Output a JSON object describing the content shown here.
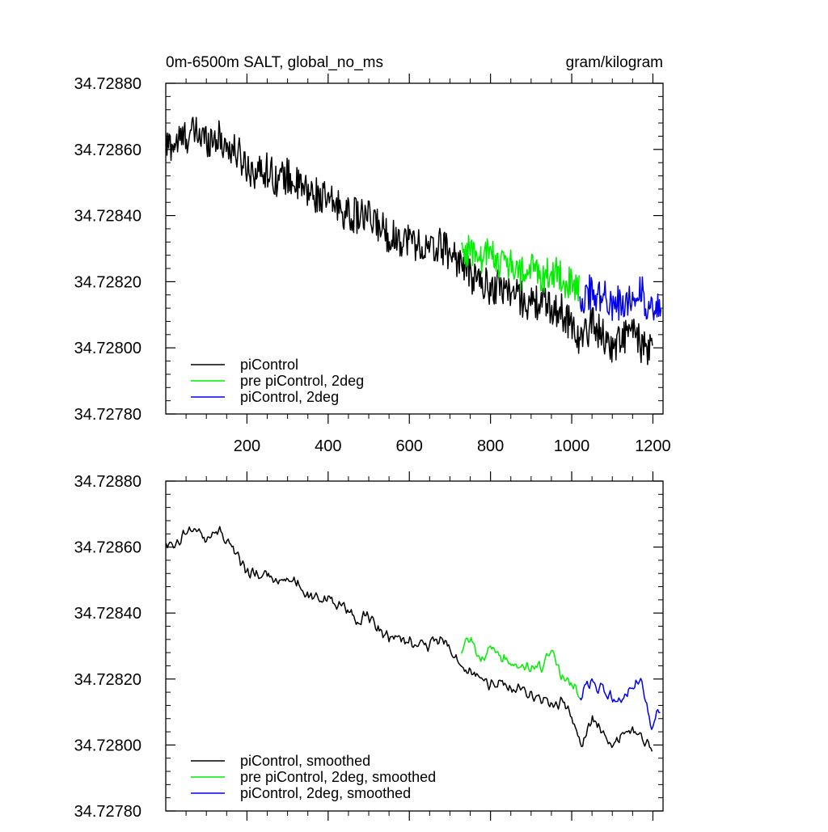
{
  "chart_data": [
    {
      "type": "line",
      "title": "0m-6500m SALT, global_no_ms",
      "units": "gram/kilogram",
      "xlim": [
        0,
        1225
      ],
      "ylim": [
        34.7278,
        34.7288
      ],
      "xticks": [
        200,
        400,
        600,
        800,
        1000,
        1200
      ],
      "xtick_labels": [
        "200",
        "400",
        "600",
        "800",
        "1000",
        "1200"
      ],
      "yticks": [
        34.7278,
        34.728,
        34.7282,
        34.7284,
        34.7286,
        34.7288
      ],
      "ytick_labels": [
        "34.72780",
        "34.72800",
        "34.72820",
        "34.72840",
        "34.72860",
        "34.72880"
      ],
      "grid": false,
      "legend": "bottom-left",
      "series": [
        {
          "name": "piControl",
          "color": "#000000",
          "x": [
            1,
            25,
            50,
            75,
            100,
            125,
            150,
            175,
            200,
            225,
            250,
            275,
            300,
            325,
            350,
            375,
            400,
            425,
            450,
            475,
            500,
            525,
            550,
            575,
            600,
            625,
            650,
            675,
            700,
            725,
            750,
            775,
            800,
            825,
            850,
            875,
            900,
            925,
            950,
            975,
            1000,
            1025,
            1050,
            1075,
            1100,
            1125,
            1150,
            1175,
            1200
          ],
          "y": [
            34.72861,
            34.72862,
            34.72864,
            34.72865,
            34.72863,
            34.72864,
            34.72861,
            34.72859,
            34.72855,
            34.72853,
            34.72854,
            34.72851,
            34.72852,
            34.72849,
            34.72847,
            34.72846,
            34.72844,
            34.72843,
            34.7284,
            34.7284,
            34.72839,
            34.72837,
            34.72834,
            34.72833,
            34.72833,
            34.72831,
            34.72829,
            34.72831,
            34.72829,
            34.72826,
            34.72822,
            34.7282,
            34.72818,
            34.72819,
            34.72817,
            34.72815,
            34.72813,
            34.72814,
            34.72812,
            34.72811,
            34.72807,
            34.72802,
            34.72808,
            34.72804,
            34.728,
            34.72803,
            34.72805,
            34.728,
            34.72798
          ]
        },
        {
          "name": "pre piControl, 2deg",
          "color": "#00ee00",
          "x": [
            728,
            750,
            775,
            800,
            825,
            850,
            875,
            900,
            925,
            950,
            975,
            1000,
            1020
          ],
          "y": [
            34.72829,
            34.7283,
            34.72826,
            34.72829,
            34.72826,
            34.72825,
            34.72822,
            34.72824,
            34.72822,
            34.72823,
            34.72822,
            34.72818,
            34.72817
          ]
        },
        {
          "name": "piControl, 2deg",
          "color": "#0000ee",
          "x": [
            1020,
            1045,
            1070,
            1095,
            1120,
            1145,
            1170,
            1195,
            1220
          ],
          "y": [
            34.72815,
            34.72817,
            34.72816,
            34.72814,
            34.72813,
            34.72815,
            34.72818,
            34.7281,
            34.72812
          ]
        }
      ]
    },
    {
      "type": "line",
      "xlim": [
        0,
        1225
      ],
      "ylim": [
        34.7278,
        34.7288
      ],
      "xticks": [
        200,
        400,
        600,
        800,
        1000,
        1200
      ],
      "yticks": [
        34.7278,
        34.728,
        34.7282,
        34.7284,
        34.7286,
        34.7288
      ],
      "ytick_labels": [
        "34.72780",
        "34.72800",
        "34.72820",
        "34.72840",
        "34.72860",
        "34.72880"
      ],
      "grid": false,
      "legend": "bottom-left",
      "series": [
        {
          "name": "piControl, smoothed",
          "color": "#000000",
          "x": [
            1,
            25,
            50,
            75,
            100,
            125,
            150,
            175,
            200,
            225,
            250,
            275,
            300,
            325,
            350,
            375,
            400,
            425,
            450,
            475,
            500,
            525,
            550,
            575,
            600,
            625,
            650,
            675,
            700,
            725,
            750,
            775,
            800,
            825,
            850,
            875,
            900,
            925,
            950,
            975,
            1000,
            1025,
            1050,
            1075,
            1100,
            1125,
            1150,
            1175,
            1200
          ],
          "y": [
            34.72861,
            34.72861,
            34.72865,
            34.72866,
            34.72861,
            34.72866,
            34.72861,
            34.72858,
            34.72852,
            34.72852,
            34.72852,
            34.7285,
            34.72851,
            34.72849,
            34.72845,
            34.72845,
            34.72844,
            34.72843,
            34.7284,
            34.72838,
            34.72839,
            34.72835,
            34.72833,
            34.72832,
            34.72832,
            34.7283,
            34.7283,
            34.72832,
            34.7283,
            34.72824,
            34.72822,
            34.7282,
            34.72818,
            34.7282,
            34.72817,
            34.72818,
            34.72815,
            34.72814,
            34.72812,
            34.72813,
            34.72808,
            34.728,
            34.72808,
            34.72805,
            34.728,
            34.72803,
            34.72805,
            34.72802,
            34.72798
          ]
        },
        {
          "name": "pre piControl, 2deg, smoothed",
          "color": "#00ee00",
          "x": [
            728,
            750,
            775,
            800,
            825,
            850,
            875,
            900,
            925,
            950,
            975,
            1000,
            1020
          ],
          "y": [
            34.72828,
            34.72833,
            34.72826,
            34.7283,
            34.72826,
            34.72826,
            34.72824,
            34.72824,
            34.72824,
            34.72828,
            34.72821,
            34.72818,
            34.72816
          ]
        },
        {
          "name": "piControl, 2deg, smoothed",
          "color": "#0000ee",
          "x": [
            1020,
            1045,
            1070,
            1095,
            1120,
            1145,
            1170,
            1195,
            1220
          ],
          "y": [
            34.72815,
            34.72819,
            34.72817,
            34.72815,
            34.72814,
            34.72818,
            34.7282,
            34.72806,
            34.72812
          ]
        }
      ]
    }
  ]
}
